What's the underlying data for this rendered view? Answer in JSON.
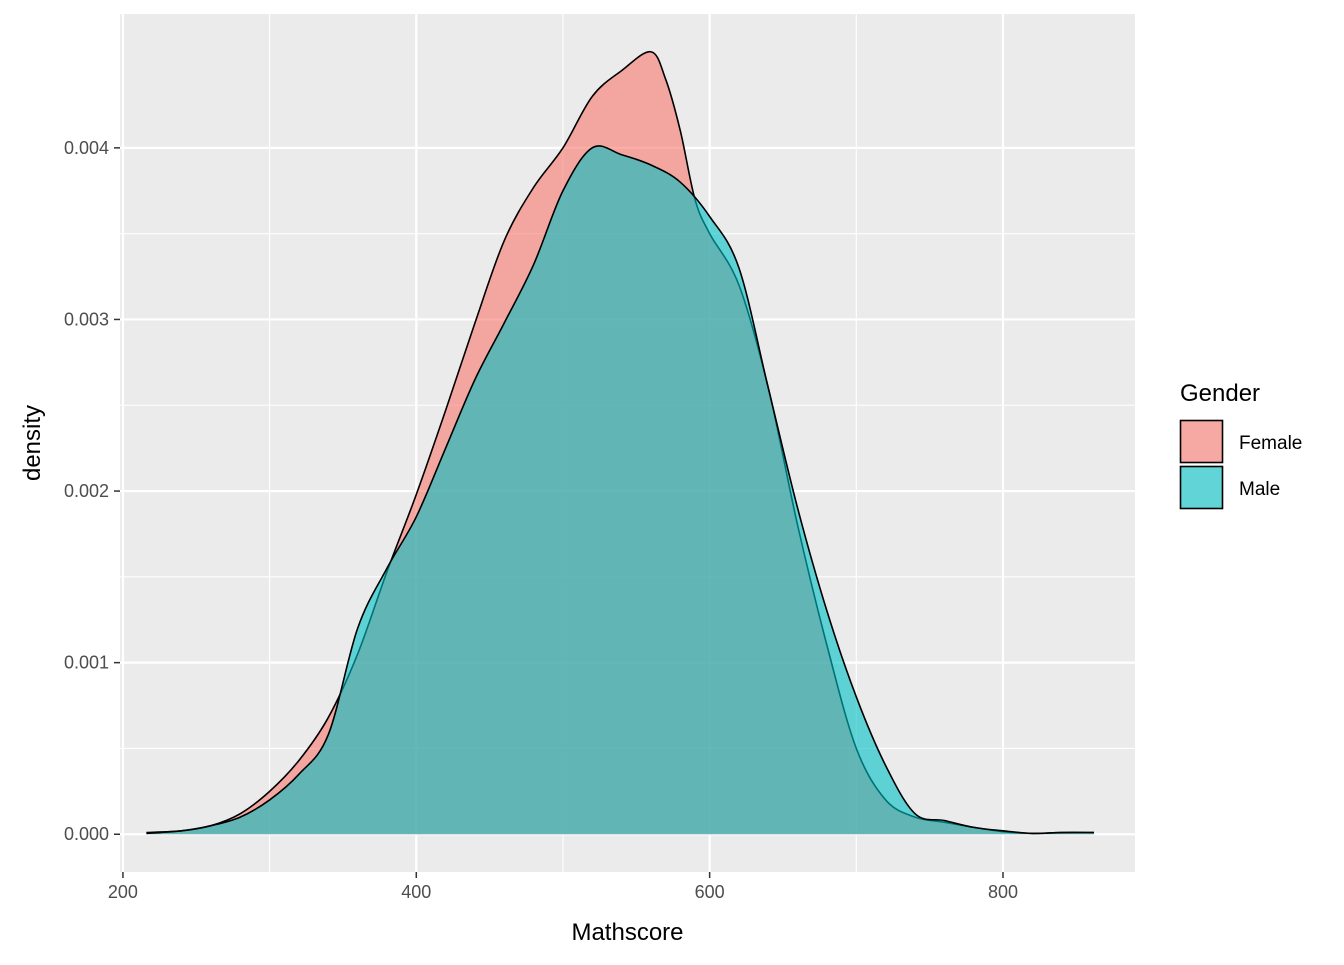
{
  "chart_data": {
    "type": "area",
    "subtype": "density",
    "title": "",
    "xlabel": "Mathscore",
    "ylabel": "density",
    "xlim": [
      198,
      890
    ],
    "ylim": [
      -0.00022,
      0.00478
    ],
    "x_ticks": [
      200,
      400,
      600,
      800
    ],
    "x_tick_labels": [
      "200",
      "400",
      "600",
      "800"
    ],
    "y_ticks": [
      0.0,
      0.001,
      0.002,
      0.003,
      0.004
    ],
    "y_tick_labels": [
      "0.000",
      "0.001",
      "0.002",
      "0.003",
      "0.004"
    ],
    "grid": true,
    "panel_background": "#EBEBEB",
    "grid_color": "#FFFFFF",
    "legend": {
      "title": "Gender",
      "position": "right",
      "entries": [
        "Female",
        "Male"
      ]
    },
    "series": [
      {
        "name": "Female",
        "color": "#F8766D",
        "fill_opacity": 0.6,
        "x": [
          216,
          240,
          260,
          280,
          300,
          320,
          340,
          360,
          380,
          400,
          420,
          440,
          460,
          480,
          500,
          520,
          540,
          560,
          570,
          580,
          590,
          600,
          620,
          640,
          660,
          680,
          700,
          720,
          740,
          760,
          780,
          800,
          820,
          840,
          862
        ],
        "y": [
          1e-05,
          2e-05,
          5e-05,
          0.00012,
          0.00025,
          0.00043,
          0.00068,
          0.00105,
          0.00153,
          0.00198,
          0.00247,
          0.00298,
          0.00346,
          0.00377,
          0.004,
          0.0043,
          0.00445,
          0.00456,
          0.0044,
          0.0041,
          0.0037,
          0.0035,
          0.0032,
          0.0026,
          0.0018,
          0.0011,
          0.0005,
          0.0002,
          0.0001,
          7e-05,
          4e-05,
          1.5e-05,
          5e-06,
          1e-05,
          1e-05
        ]
      },
      {
        "name": "Male",
        "color": "#00BFC4",
        "fill_opacity": 0.6,
        "x": [
          216,
          240,
          260,
          280,
          300,
          320,
          340,
          360,
          380,
          400,
          420,
          440,
          460,
          480,
          500,
          520,
          540,
          560,
          580,
          600,
          620,
          640,
          660,
          680,
          700,
          720,
          740,
          760,
          780,
          800,
          820,
          840,
          862
        ],
        "y": [
          5e-06,
          2e-05,
          5e-05,
          0.0001,
          0.0002,
          0.00035,
          0.00058,
          0.0012,
          0.00155,
          0.00185,
          0.00225,
          0.00265,
          0.00298,
          0.00332,
          0.00375,
          0.004,
          0.00396,
          0.0039,
          0.0038,
          0.0036,
          0.0033,
          0.0026,
          0.0019,
          0.0013,
          0.0008,
          0.0004,
          0.00012,
          8e-05,
          4e-05,
          2e-05,
          5e-06,
          1e-05,
          1e-05
        ]
      }
    ]
  }
}
